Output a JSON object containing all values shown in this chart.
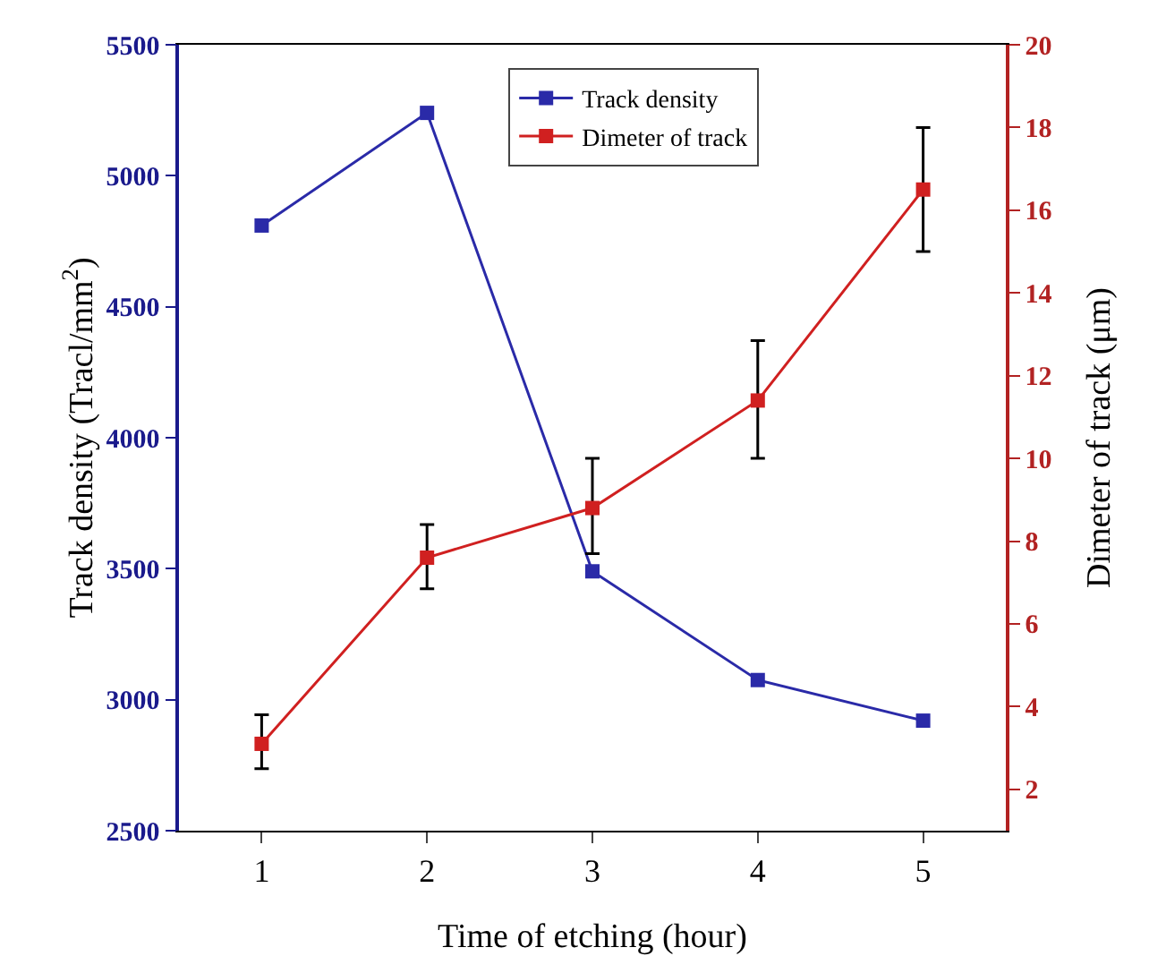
{
  "chart_data": {
    "type": "line",
    "xlabel": "Time of etching (hour)",
    "ylabel": "Track density (Tracl/mm$^{2}$)",
    "y2label": "Dimeter of track (μm)",
    "x": [
      1,
      2,
      3,
      4,
      5
    ],
    "xlim": [
      0.5,
      5.5
    ],
    "xticks": [
      1,
      2,
      3,
      4,
      5
    ],
    "ylim": [
      2500,
      5500
    ],
    "yticks": [
      2500,
      3000,
      3500,
      4000,
      4500,
      5000,
      5500
    ],
    "y2lim": [
      1,
      20
    ],
    "y2ticks": [
      2,
      4,
      6,
      8,
      10,
      12,
      14,
      16,
      18,
      20
    ],
    "series": [
      {
        "name": "Track density",
        "color": "#2a2aa8",
        "values": [
          4810,
          5240,
          3490,
          3075,
          2920
        ]
      },
      {
        "name": "Dimeter of track",
        "color": "#d02020",
        "axis": "y2",
        "values": [
          3.1,
          7.6,
          8.8,
          11.4,
          16.5
        ],
        "errors": [
          [
            2.5,
            3.8
          ],
          [
            6.85,
            8.4
          ],
          [
            7.7,
            10.0
          ],
          [
            10.0,
            12.85
          ],
          [
            15.0,
            18.0
          ]
        ]
      }
    ],
    "marker": "square",
    "legend": "top",
    "grid": false
  }
}
